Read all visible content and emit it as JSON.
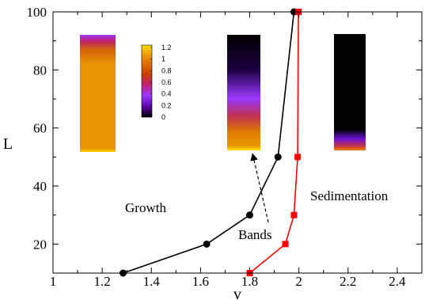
{
  "chart_data": {
    "type": "line",
    "xlabel": "v",
    "ylabel": "L",
    "xlim": [
      1,
      2.5
    ],
    "ylim": [
      10,
      100
    ],
    "x_ticks": [
      "1",
      "1.2",
      "1.4",
      "1.6",
      "1.8",
      "2",
      "2.2",
      "2.4"
    ],
    "y_ticks": [
      "20",
      "40",
      "60",
      "80",
      "100"
    ],
    "grid": false,
    "series": [
      {
        "color": "#000000",
        "marker": "circle",
        "points": [
          {
            "x": 1.285,
            "y": 10
          },
          {
            "x": 1.625,
            "y": 20
          },
          {
            "x": 1.8,
            "y": 30
          },
          {
            "x": 1.915,
            "y": 50
          },
          {
            "x": 1.98,
            "y": 100
          }
        ]
      },
      {
        "color": "#ff0000",
        "marker": "square",
        "points": [
          {
            "x": 1.8,
            "y": 10
          },
          {
            "x": 1.945,
            "y": 20
          },
          {
            "x": 1.98,
            "y": 30
          },
          {
            "x": 1.995,
            "y": 50
          },
          {
            "x": 1.998,
            "y": 100
          }
        ]
      }
    ],
    "annotations": [
      "Growth",
      "Bands",
      "Sedimentation"
    ],
    "colorbar": {
      "ticks": [
        "1.2",
        "1",
        "0.8",
        "0.6",
        "0.4",
        "0.2",
        "0"
      ],
      "colors": [
        "#000000",
        "#5a00a0",
        "#9a38ff",
        "#c02070",
        "#c84000",
        "#e07000",
        "#f0a000",
        "#ffe000"
      ]
    }
  }
}
